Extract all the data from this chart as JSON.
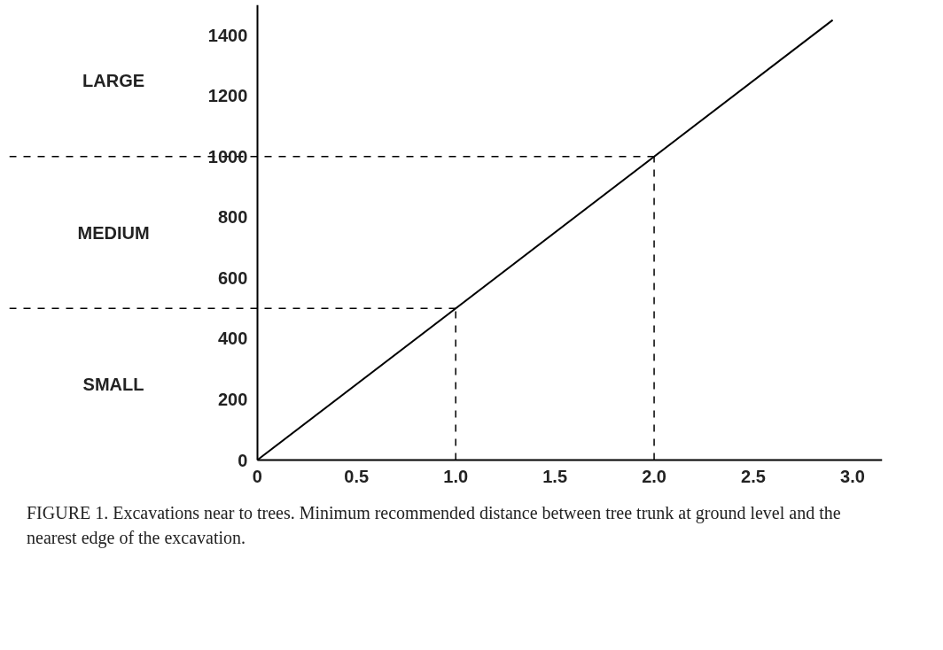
{
  "chart_data": {
    "type": "line",
    "x": [
      0,
      2.9
    ],
    "series": [
      {
        "color": "#000000",
        "values": [
          0,
          1450
        ]
      }
    ],
    "xlim": [
      -1.25,
      3.15
    ],
    "ylim": [
      0,
      1500
    ],
    "xticks": [
      0,
      0.5,
      {
        "value": 1,
        "label": "1.0"
      },
      1.5,
      {
        "value": 2,
        "label": "2.0"
      },
      2.5,
      {
        "value": 3,
        "label": "3.0"
      }
    ],
    "yticks": [
      0,
      200,
      400,
      600,
      800,
      1000,
      1200,
      1400
    ],
    "grid": false,
    "marker": "none",
    "line_style": "solid",
    "ref_lines": [
      {
        "axis": "y",
        "value": 500,
        "color": "#000000",
        "line_style": "dashed"
      },
      {
        "axis": "y",
        "value": 1000,
        "color": "#000000",
        "line_style": "dashed"
      },
      {
        "axis": "x",
        "value": 1.0,
        "color": "#000000",
        "line_style": "dashed"
      },
      {
        "axis": "x",
        "value": 2.0,
        "color": "#000000",
        "line_style": "dashed"
      }
    ],
    "annotations": [
      "SMALL",
      "MEDIUM",
      "LARGE",
      "FIGURE 1. Excavations near to trees. Minimum recommended distance between tree trunk at ground level and the nearest edge of the excavation."
    ]
  }
}
